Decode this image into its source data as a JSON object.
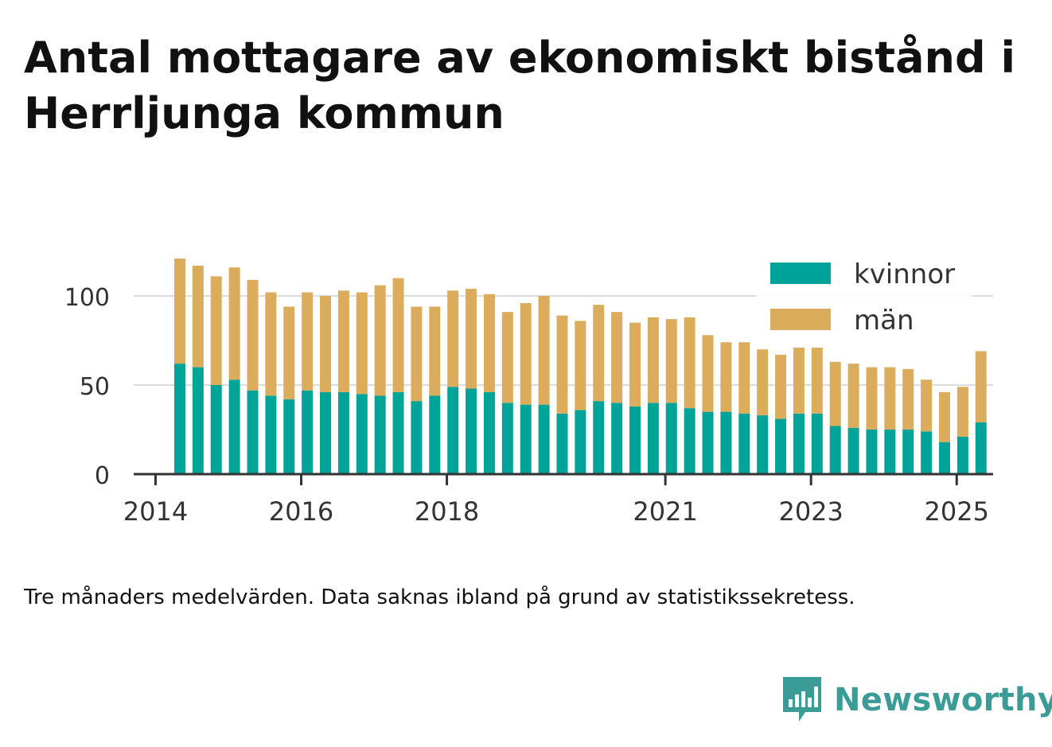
{
  "title": "Antal mottagare av ekonomiskt bistånd i Herrljunga kommun",
  "footnote": "Tre månaders medelvärden. Data saknas ibland på grund av statistikssekretess.",
  "logo": {
    "text": "Newsworthy",
    "icon": "bar-chart-speech-bubble-icon"
  },
  "colors": {
    "kvinnor": "#00a398",
    "man": "#dbac5c",
    "grid": "#dddddd",
    "axis": "#333333",
    "text": "#333333"
  },
  "chart_data": {
    "type": "bar",
    "stacked": true,
    "legend": {
      "position": "top-right",
      "entries": [
        "kvinnor",
        "män"
      ]
    },
    "ylim": [
      0,
      120
    ],
    "yticks": [
      0,
      50,
      100
    ],
    "xlim": [
      2013.7,
      2025.5
    ],
    "xticks": [
      {
        "value": 2014,
        "label": "2014"
      },
      {
        "value": 2016,
        "label": "2016"
      },
      {
        "value": 2018,
        "label": "2018"
      },
      {
        "value": 2021,
        "label": "2021"
      },
      {
        "value": 2023,
        "label": "2023"
      },
      {
        "value": 2025,
        "label": "2025"
      }
    ],
    "grid": true,
    "x": [
      "2014-05",
      "2014-08",
      "2014-11",
      "2015-02",
      "2015-05",
      "2015-08",
      "2015-11",
      "2016-02",
      "2016-05",
      "2016-08",
      "2016-11",
      "2017-02",
      "2017-05",
      "2017-08",
      "2017-11",
      "2018-02",
      "2018-05",
      "2018-08",
      "2018-11",
      "2019-02",
      "2019-05",
      "2019-08",
      "2019-11",
      "2020-02",
      "2020-05",
      "2020-08",
      "2020-11",
      "2021-02",
      "2021-05",
      "2021-08",
      "2021-11",
      "2022-02",
      "2022-05",
      "2022-08",
      "2022-11",
      "2023-02",
      "2023-05",
      "2023-08",
      "2023-11",
      "2024-02",
      "2024-05",
      "2024-08",
      "2024-11",
      "2025-02",
      "2025-05"
    ],
    "series": [
      {
        "name": "kvinnor",
        "values": [
          62,
          60,
          50,
          53,
          47,
          44,
          42,
          47,
          46,
          46,
          45,
          44,
          46,
          41,
          44,
          49,
          48,
          46,
          40,
          39,
          39,
          34,
          36,
          41,
          40,
          38,
          40,
          40,
          37,
          35,
          35,
          34,
          33,
          31,
          34,
          34,
          27,
          26,
          25,
          25,
          25,
          24,
          18,
          21,
          29
        ]
      },
      {
        "name": "män",
        "values": [
          59,
          57,
          61,
          63,
          62,
          58,
          52,
          55,
          54,
          57,
          57,
          62,
          64,
          53,
          50,
          54,
          56,
          55,
          51,
          57,
          61,
          55,
          50,
          54,
          51,
          47,
          48,
          47,
          51,
          43,
          39,
          40,
          37,
          36,
          37,
          37,
          36,
          36,
          35,
          35,
          34,
          29,
          28,
          28,
          40
        ]
      }
    ]
  }
}
